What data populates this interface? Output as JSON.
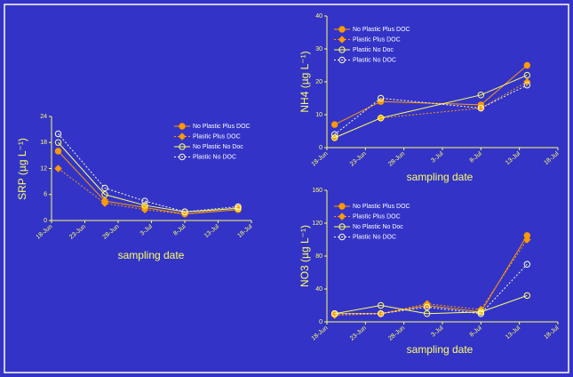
{
  "chart_data": [
    {
      "type": "line",
      "y_label": "SRP (µg L⁻¹)",
      "x_label": "sampling date",
      "x": [
        1,
        8,
        14,
        20,
        28
      ],
      "xlim": [
        0,
        30
      ],
      "xticks": [
        {
          "value": 0,
          "label": "18-Jun"
        },
        {
          "value": 5,
          "label": "23-Jun"
        },
        {
          "value": 10,
          "label": "28-Jun"
        },
        {
          "value": 15,
          "label": "3-Jul"
        },
        {
          "value": 20,
          "label": "8-Jul"
        },
        {
          "value": 25,
          "label": "13-Jul"
        },
        {
          "value": 30,
          "label": "18-Jul"
        }
      ],
      "ylim": [
        0,
        24
      ],
      "yticks": [
        0,
        6,
        12,
        18,
        24
      ],
      "series": [
        {
          "name": "No Plastic Plus DOC",
          "color": "#ff9900",
          "dash": false,
          "marker": "circle",
          "filled": true,
          "values": [
            16,
            4.5,
            3,
            1.5,
            2.5
          ]
        },
        {
          "name": "Plastic Plus DOC",
          "color": "#ff9900",
          "dash": true,
          "marker": "diamond",
          "filled": true,
          "values": [
            12,
            4,
            2.5,
            1.5,
            3
          ]
        },
        {
          "name": "No Plastic No Doc",
          "color": "#ffff66",
          "dash": false,
          "marker": "circle",
          "filled": false,
          "values": [
            18,
            6,
            3.5,
            2,
            2.8
          ]
        },
        {
          "name": "Plastic No DOC",
          "color": "#ffffcc",
          "dash": true,
          "marker": "circle",
          "filled": false,
          "values": [
            20,
            7.5,
            4.5,
            2,
            3.2
          ]
        }
      ]
    },
    {
      "type": "line",
      "y_label": "NH4 (µg L⁻¹)",
      "x_label": "sampling date",
      "x": [
        1,
        7,
        20,
        26
      ],
      "xlim": [
        0,
        30
      ],
      "xticks": [
        {
          "value": 0,
          "label": "18-Jun"
        },
        {
          "value": 5,
          "label": "23-Jun"
        },
        {
          "value": 10,
          "label": "28-Jun"
        },
        {
          "value": 15,
          "label": "3-Jul"
        },
        {
          "value": 20,
          "label": "8-Jul"
        },
        {
          "value": 25,
          "label": "13-Jul"
        },
        {
          "value": 30,
          "label": "18-Jul"
        }
      ],
      "ylim": [
        0,
        40
      ],
      "yticks": [
        0,
        10,
        20,
        30,
        40
      ],
      "series": [
        {
          "name": "No Plastic Plus DOC",
          "color": "#ff9900",
          "dash": false,
          "marker": "circle",
          "filled": true,
          "values": [
            7,
            14,
            13,
            25
          ]
        },
        {
          "name": "Plastic Plus DOC",
          "color": "#ff9900",
          "dash": true,
          "marker": "diamond",
          "filled": true,
          "values": [
            3,
            9,
            12,
            20
          ]
        },
        {
          "name": "Plastic No Doc",
          "color": "#ffff66",
          "dash": false,
          "marker": "circle",
          "filled": false,
          "values": [
            3,
            9,
            16,
            22
          ]
        },
        {
          "name": "Plastic No DOC",
          "color": "#ffffcc",
          "dash": true,
          "marker": "circle",
          "filled": false,
          "values": [
            4,
            15,
            12,
            19
          ]
        }
      ]
    },
    {
      "type": "line",
      "y_label": "NO3 (µg L⁻¹)",
      "x_label": "sampling date",
      "x": [
        1,
        7,
        13,
        20,
        26
      ],
      "xlim": [
        0,
        30
      ],
      "xticks": [
        {
          "value": 0,
          "label": "18-Jun"
        },
        {
          "value": 5,
          "label": "23-Jun"
        },
        {
          "value": 10,
          "label": "28-Jun"
        },
        {
          "value": 15,
          "label": "3-Jul"
        },
        {
          "value": 20,
          "label": "8-Jul"
        },
        {
          "value": 25,
          "label": "13-Jul"
        },
        {
          "value": 30,
          "label": "18-Jul"
        }
      ],
      "ylim": [
        0,
        160
      ],
      "yticks": [
        0,
        40,
        80,
        120,
        160
      ],
      "series": [
        {
          "name": "No Plastic Plus DOC",
          "color": "#ff9900",
          "dash": false,
          "marker": "circle",
          "filled": true,
          "values": [
            10,
            10,
            20,
            12,
            105
          ]
        },
        {
          "name": "Plastic Plus DOC",
          "color": "#ff9900",
          "dash": true,
          "marker": "diamond",
          "filled": true,
          "values": [
            8,
            10,
            22,
            15,
            100
          ]
        },
        {
          "name": "No Plastic No Doc",
          "color": "#ffff66",
          "dash": false,
          "marker": "circle",
          "filled": false,
          "values": [
            10,
            20,
            10,
            12,
            32
          ]
        },
        {
          "name": "Plastic No DOC",
          "color": "#ffffcc",
          "dash": true,
          "marker": "circle",
          "filled": false,
          "values": [
            10,
            10,
            18,
            10,
            70
          ]
        }
      ]
    }
  ]
}
